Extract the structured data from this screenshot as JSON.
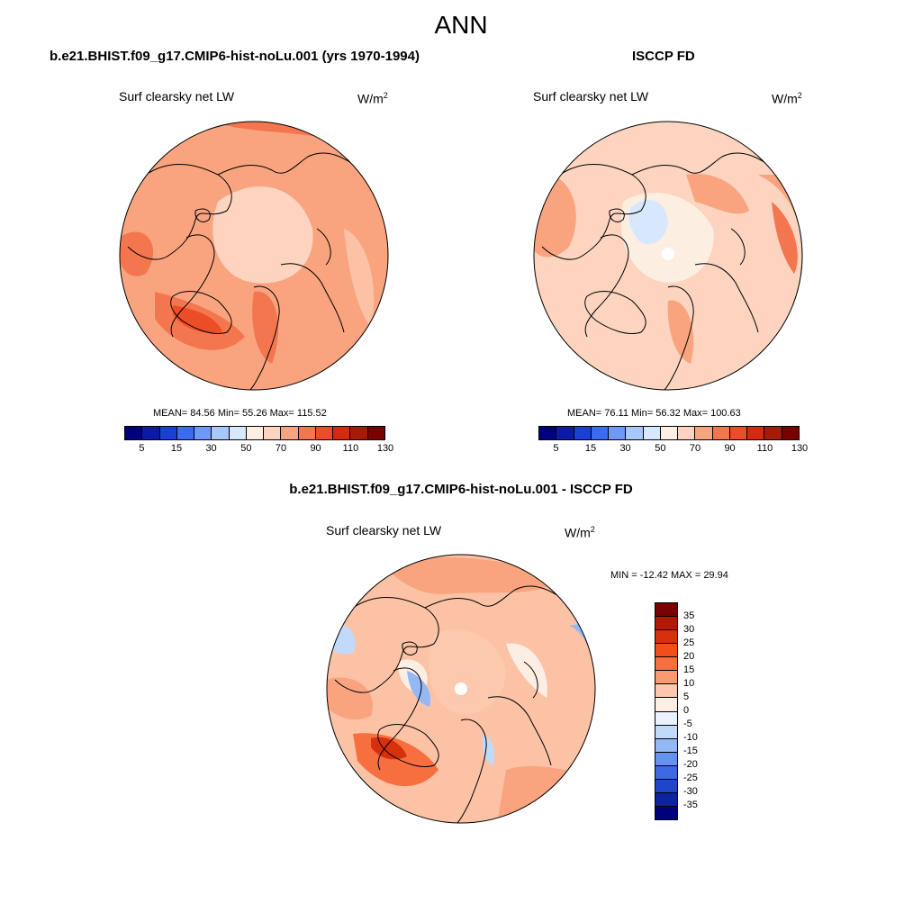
{
  "main_title": "ANN",
  "panels": [
    {
      "title": "b.e21.BHIST.f09_g17.CMIP6-hist-noLu.001 (yrs 1970-1994)",
      "variable": "Surf clearsky net LW",
      "units": "W/m",
      "units_exp": "2",
      "stats": "MEAN=  84.56  Min=  55.26  Max= 115.52",
      "map_icon": "arctic-polar-map",
      "base_color": "#f9a47f"
    },
    {
      "title": "ISCCP FD",
      "variable": "Surf clearsky net LW",
      "units": "W/m",
      "units_exp": "2",
      "stats": "MEAN=  76.11  Min=  56.32  Max= 100.63",
      "map_icon": "arctic-polar-map",
      "base_color": "#fcd4bf"
    },
    {
      "title": "b.e21.BHIST.f09_g17.CMIP6-hist-noLu.001 - ISCCP FD",
      "variable": "Surf clearsky net LW",
      "units": "W/m",
      "units_exp": "2",
      "stats": "MIN = -12.42 MAX =  29.94",
      "map_icon": "arctic-polar-map",
      "base_color": "#fbc2a6"
    }
  ],
  "abs_colorbar": {
    "labels": [
      "5",
      "15",
      "30",
      "50",
      "70",
      "90",
      "110",
      "130"
    ],
    "colors": [
      "#00007f",
      "#0d1aa8",
      "#1a3fd6",
      "#3a6bf0",
      "#6f98f7",
      "#a9c7fb",
      "#d7e8fc",
      "#fdeee2",
      "#fcd4bf",
      "#f9a47f",
      "#f4764f",
      "#ec4c26",
      "#d42a0d",
      "#a81a08",
      "#7a0000"
    ]
  },
  "diff_colorbar": {
    "labels": [
      "35",
      "30",
      "25",
      "20",
      "15",
      "10",
      "5",
      "0",
      "-5",
      "-10",
      "-15",
      "-20",
      "-25",
      "-30",
      "-35"
    ],
    "colors": [
      "#7a0000",
      "#b01a05",
      "#d6300d",
      "#f24e1b",
      "#f76f3f",
      "#fa9a70",
      "#fcc9ad",
      "#fdeee4",
      "#e9f2fd",
      "#c2daf9",
      "#94b8f5",
      "#6592ee",
      "#3d68e2",
      "#1f45c8",
      "#0d23a0",
      "#00007f"
    ]
  }
}
